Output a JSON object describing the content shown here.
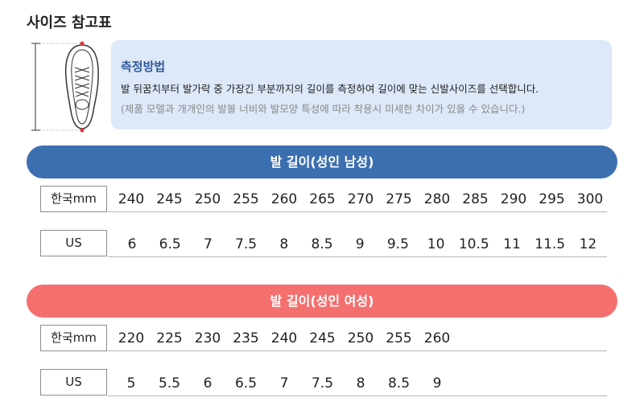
{
  "title": "사이즈 참고표",
  "info": {
    "heading": "측정방법",
    "line1": "발 뒤꿈치부터 발가락 중 가장긴 부분까지의 길이를 측정하여 길이에 맞는 신발사이즈를 선택합니다.",
    "line2": "(제품 모델과 개개인의 발볼 너비와 발모양 특성에 따라 착용시 미세한 차이가 있을 수 있습니다.)"
  },
  "men": {
    "title": "발 길이(성인 남성)",
    "mm_label": "한국mm",
    "us_label": "US",
    "mm": [
      "240",
      "245",
      "250",
      "255",
      "260",
      "265",
      "270",
      "275",
      "280",
      "285",
      "290",
      "295",
      "300"
    ],
    "us": [
      "6",
      "6.5",
      "7",
      "7.5",
      "8",
      "8.5",
      "9",
      "9.5",
      "10",
      "10.5",
      "11",
      "11.5",
      "12"
    ]
  },
  "women": {
    "title": "발 길이(성인 여성)",
    "mm_label": "한국mm",
    "us_label": "US",
    "mm": [
      "220",
      "225",
      "230",
      "235",
      "240",
      "245",
      "250",
      "255",
      "260"
    ],
    "us": [
      "5",
      "5.5",
      "6",
      "6.5",
      "7",
      "7.5",
      "8",
      "8.5",
      "9"
    ]
  },
  "colors": {
    "men_banner": "#3c6fb0",
    "women_banner": "#f4706e",
    "info_bg": "#dde8f8",
    "info_heading": "#2f5a9a"
  },
  "icons": {
    "shoe": "shoe-top-view-icon"
  }
}
